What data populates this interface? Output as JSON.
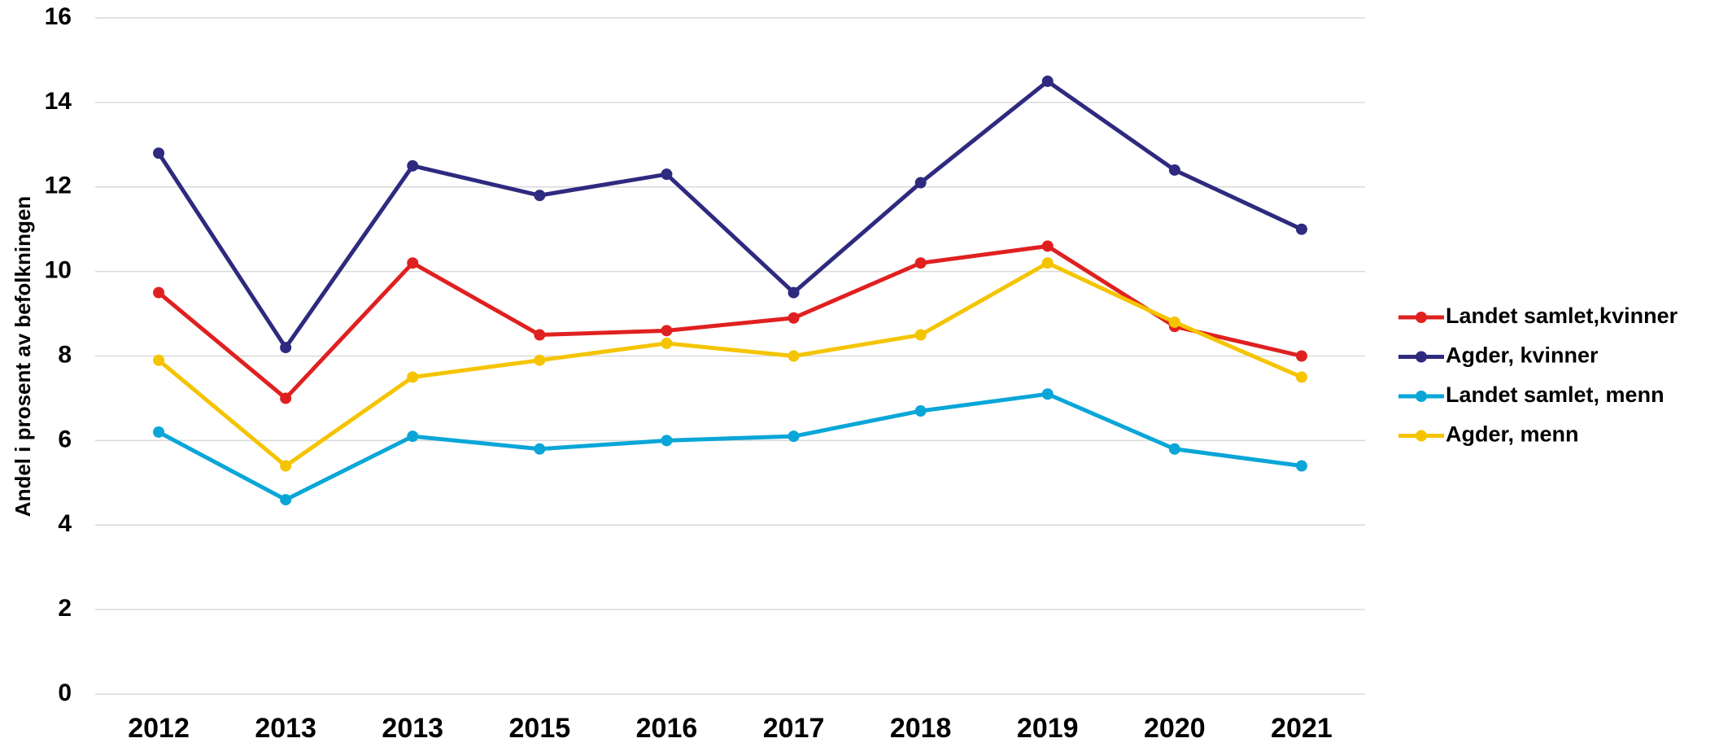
{
  "chart_data": {
    "type": "line",
    "y_label": "Andel i prosent av befolkningen",
    "categories": [
      "2012",
      "2013",
      "2013",
      "2015",
      "2016",
      "2017",
      "2018",
      "2019",
      "2020",
      "2021"
    ],
    "series": [
      {
        "name": "Landet samlet,kvinner",
        "color": "#e02020",
        "values": [
          9.5,
          7.0,
          10.2,
          8.5,
          8.6,
          8.9,
          10.2,
          10.6,
          8.7,
          8.0
        ]
      },
      {
        "name": "Agder, kvinner",
        "color": "#2e2a7f",
        "values": [
          12.8,
          8.2,
          12.5,
          11.8,
          12.3,
          9.5,
          12.1,
          14.5,
          12.4,
          11.0
        ]
      },
      {
        "name": "Landet samlet, menn",
        "color": "#0aa6d8",
        "values": [
          6.2,
          4.6,
          6.1,
          5.8,
          6.0,
          6.1,
          6.7,
          7.1,
          5.8,
          5.4
        ]
      },
      {
        "name": "Agder, menn",
        "color": "#f5c400",
        "values": [
          7.9,
          5.4,
          7.5,
          7.9,
          8.3,
          8.0,
          8.5,
          10.2,
          8.8,
          7.5
        ]
      }
    ],
    "ylim": [
      0,
      16
    ],
    "yticks": [
      0,
      2,
      4,
      6,
      8,
      10,
      12,
      14,
      16
    ],
    "grid": true,
    "legend": "right"
  }
}
